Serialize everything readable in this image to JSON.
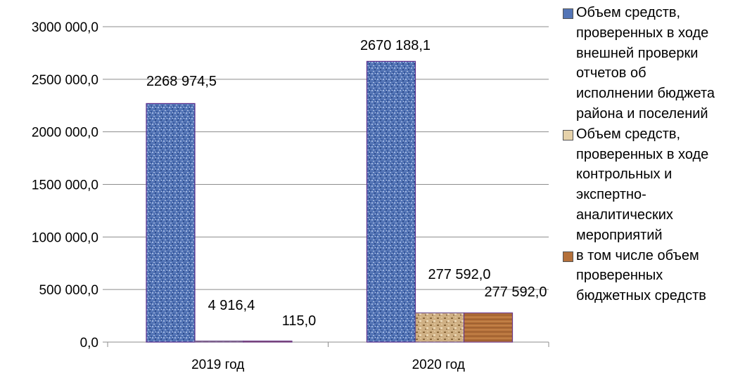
{
  "chart_data": {
    "type": "bar",
    "categories": [
      "2019 год",
      "2020 год"
    ],
    "series": [
      {
        "name": "Объем средств,\nпроверенных в ходе\nвнешней проверки\nотчетов об\nисполнении бюджета\nрайона и поселений",
        "values": [
          2268974.5,
          2670188.1
        ],
        "labels": [
          "2268 974,5",
          "2670 188,1"
        ],
        "color": "#4f6fae",
        "pattern": "blue-texture"
      },
      {
        "name": "Объем средств,\nпроверенных в ходе\nконтрольных и\nэкспертно-\nаналитических\nмероприятий",
        "values": [
          4916.4,
          277592.0
        ],
        "labels": [
          "4 916,4",
          "277 592,0"
        ],
        "color": "#c8a878",
        "pattern": "sand-texture"
      },
      {
        "name": "в том числе объем\nпроверенных\nбюджетных средств",
        "values": [
          115.0,
          277592.0
        ],
        "labels": [
          "115,0",
          "277 592,0"
        ],
        "color": "#b06a36",
        "pattern": "wood-texture"
      }
    ],
    "yticks": [
      "0,0",
      "500 000,0",
      "1000 000,0",
      "1500 000,0",
      "2000 000,0",
      "2500 000,0",
      "3000 000,0"
    ],
    "ylim": [
      0,
      3000000
    ],
    "grid": true,
    "legend_position": "right",
    "title": "",
    "xlabel": "",
    "ylabel": ""
  }
}
